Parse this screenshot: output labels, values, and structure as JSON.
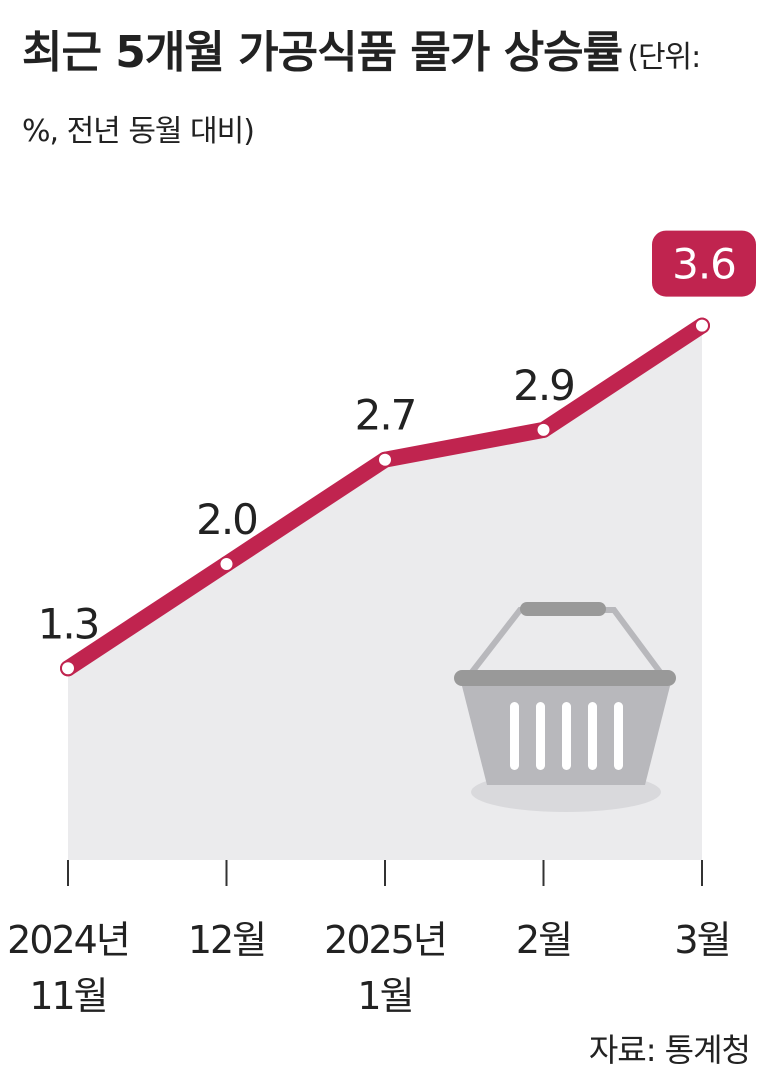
{
  "chart_data": {
    "type": "line",
    "title": "최근 5개월 가공식품 물가 상승률",
    "subtitle": "(단위: %, 전년 동월 대비)",
    "categories": [
      "2024년\n11월",
      "12월",
      "2025년\n1월",
      "2월",
      "3월"
    ],
    "values": [
      1.3,
      2.0,
      2.7,
      2.9,
      3.6
    ],
    "value_labels": [
      "1.3",
      "2.0",
      "2.7",
      "2.9",
      "3.6"
    ],
    "color": "#c0244f",
    "source": "자료: 통계청"
  }
}
